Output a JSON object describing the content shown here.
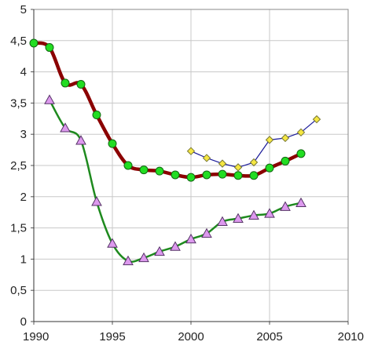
{
  "chart_data": {
    "type": "line",
    "title": "",
    "xlabel": "",
    "ylabel": "",
    "xlim": [
      1990,
      2010
    ],
    "ylim": [
      0,
      5
    ],
    "x_ticks": [
      "1990",
      "1995",
      "2000",
      "2005",
      "2010"
    ],
    "y_ticks": [
      "0",
      "0,5",
      "1",
      "1,5",
      "2",
      "2,5",
      "3",
      "3,5",
      "4",
      "4,5",
      "5"
    ],
    "grid": true,
    "legend": "none",
    "series": [
      {
        "line_color": "#8b0000",
        "marker": "circle",
        "marker_color": "#22dd22",
        "x": [
          1990,
          1991,
          1992,
          1993,
          1994,
          1995,
          1996,
          1997,
          1998,
          1999,
          2000,
          2001,
          2002,
          2003,
          2004,
          2005,
          2006,
          2007
        ],
        "y": [
          4.46,
          4.39,
          3.82,
          3.8,
          3.31,
          2.85,
          2.5,
          2.43,
          2.41,
          2.35,
          2.31,
          2.35,
          2.36,
          2.34,
          2.34,
          2.46,
          2.57,
          2.69
        ]
      },
      {
        "line_color": "#1e8a1e",
        "marker": "triangle",
        "marker_color": "#dd99ee",
        "x": [
          1991,
          1992,
          1993,
          1994,
          1995,
          1996,
          1997,
          1998,
          1999,
          2000,
          2001,
          2002,
          2003,
          2004,
          2005,
          2006,
          2007
        ],
        "y": [
          3.55,
          3.1,
          2.9,
          1.92,
          1.25,
          0.97,
          1.02,
          1.12,
          1.2,
          1.32,
          1.41,
          1.6,
          1.65,
          1.7,
          1.73,
          1.84,
          1.9
        ]
      },
      {
        "line_color": "#1a1a99",
        "marker": "diamond",
        "marker_color": "#f5e642",
        "x": [
          2000,
          2001,
          2002,
          2003,
          2004,
          2005,
          2006,
          2007,
          2008
        ],
        "y": [
          2.73,
          2.62,
          2.53,
          2.47,
          2.55,
          2.91,
          2.94,
          3.03,
          3.24
        ]
      }
    ]
  }
}
